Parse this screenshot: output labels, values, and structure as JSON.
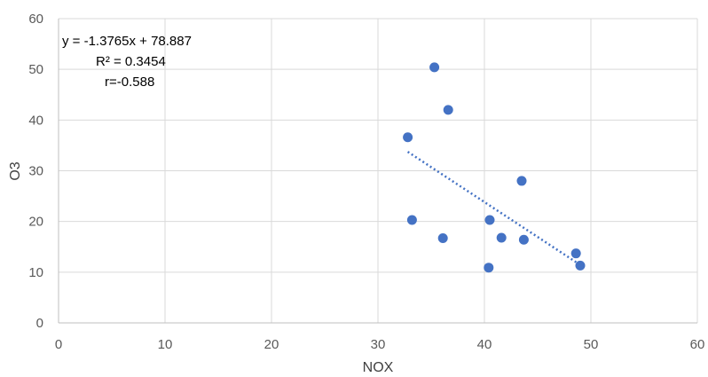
{
  "chart_data": {
    "type": "scatter",
    "title": "",
    "xlabel": "NOX",
    "ylabel": "O3",
    "xlim": [
      0,
      60
    ],
    "ylim": [
      0,
      60
    ],
    "x_ticks": [
      "0",
      "10",
      "20",
      "30",
      "40",
      "50",
      "60"
    ],
    "y_ticks": [
      "0",
      "10",
      "20",
      "30",
      "40",
      "50",
      "60"
    ],
    "grid": true,
    "legend": "none",
    "series": [
      {
        "points": [
          {
            "x": 32.8,
            "y": 36.6
          },
          {
            "x": 33.2,
            "y": 20.3
          },
          {
            "x": 35.3,
            "y": 50.4
          },
          {
            "x": 36.1,
            "y": 16.7
          },
          {
            "x": 36.6,
            "y": 42.0
          },
          {
            "x": 40.4,
            "y": 10.9
          },
          {
            "x": 40.5,
            "y": 20.3
          },
          {
            "x": 41.6,
            "y": 16.8
          },
          {
            "x": 43.5,
            "y": 28.0
          },
          {
            "x": 43.7,
            "y": 16.4
          },
          {
            "x": 48.6,
            "y": 13.7
          },
          {
            "x": 49.0,
            "y": 11.3
          }
        ]
      }
    ],
    "trendline": {
      "type": "linear",
      "slope": -1.3765,
      "intercept": 78.887,
      "x_range": [
        32.8,
        49.0
      ]
    },
    "annotations": [
      "y = -1.3765x + 78.887",
      "R² = 0.3454",
      "r=-0.588"
    ]
  },
  "colors": {
    "marker": "#4472C4",
    "trendline": "#4472C4",
    "grid": "#d9d9d9",
    "axis": "#bfbfbf",
    "text": "#595959"
  }
}
